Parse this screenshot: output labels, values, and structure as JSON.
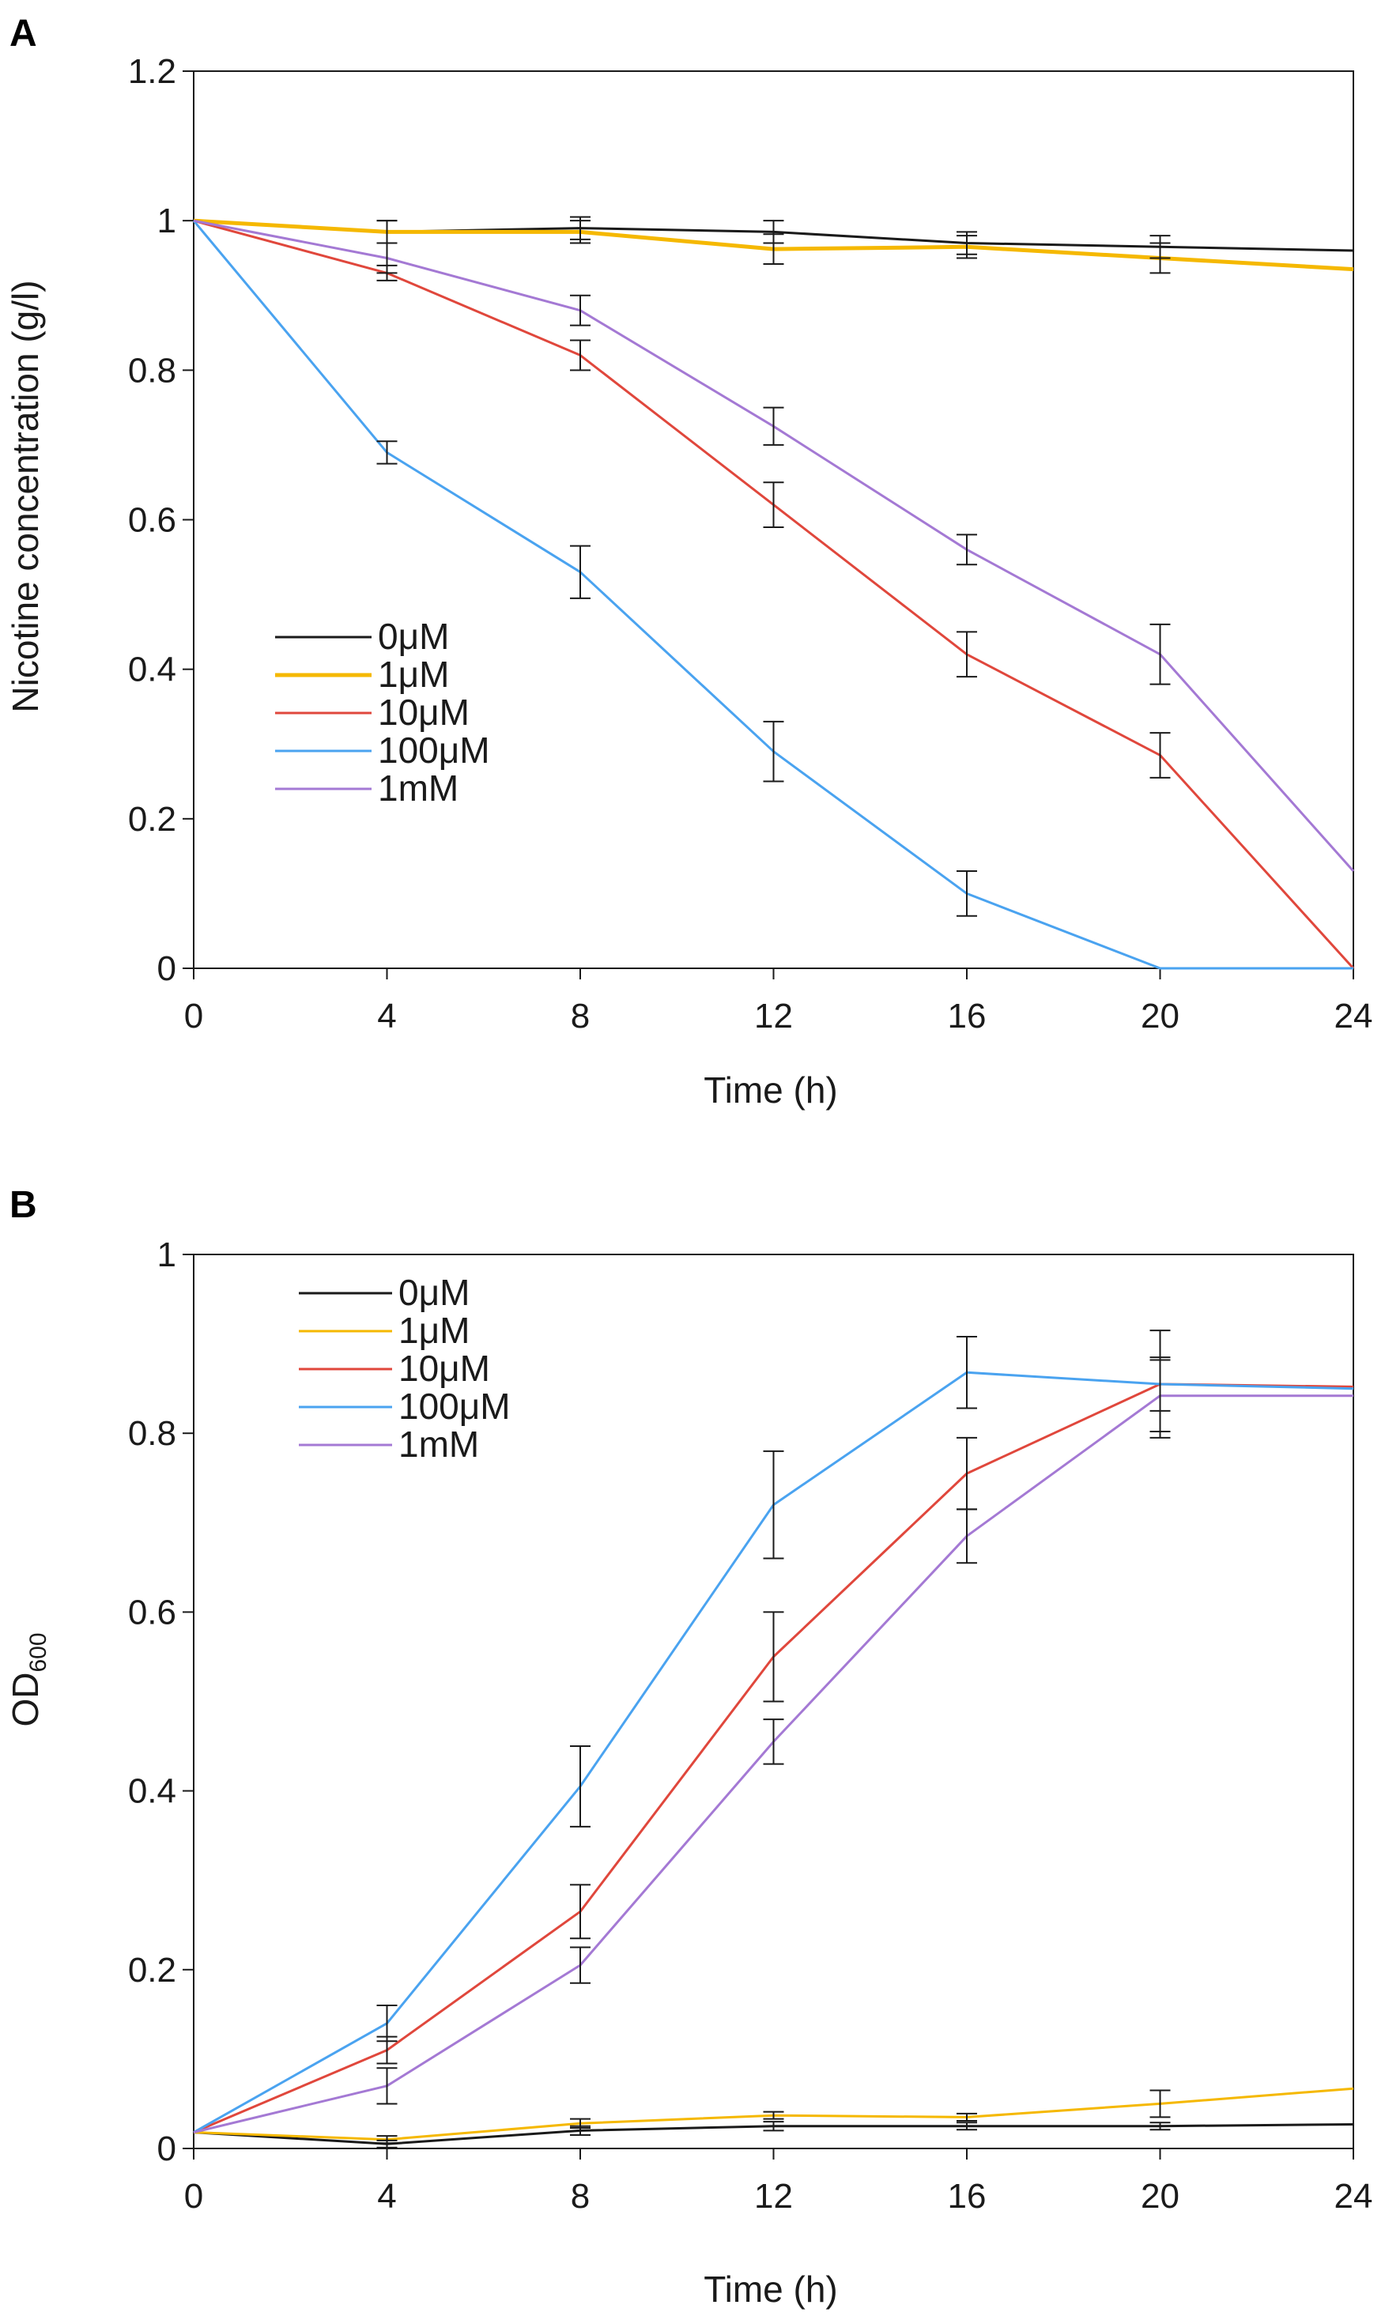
{
  "chart_data": [
    {
      "panel": "A",
      "type": "line",
      "title": "",
      "xlabel": "Time (h)",
      "ylabel": "Nicotine concentration (g/l)",
      "x": [
        0,
        4,
        8,
        12,
        16,
        20,
        24
      ],
      "x_ticks": [
        "0",
        "4",
        "8",
        "12",
        "16",
        "20",
        "24"
      ],
      "xlim": [
        0,
        24
      ],
      "ylim": [
        0,
        1.2
      ],
      "y_ticks": [
        "0",
        "0.2",
        "0.4",
        "0.6",
        "0.8",
        "1",
        "1.2"
      ],
      "legend_position": "left-middle",
      "series": [
        {
          "name": "0μM",
          "color": "#1a1a1a",
          "values": [
            1.0,
            0.985,
            0.99,
            0.985,
            0.97,
            0.965,
            0.96
          ],
          "errors": [
            0,
            0.015,
            0.015,
            0.015,
            0.015,
            0.015,
            0
          ]
        },
        {
          "name": "1μM",
          "color": "#f5b800",
          "values": [
            1.0,
            0.985,
            0.985,
            0.962,
            0.965,
            0.95,
            0.935
          ],
          "errors": [
            0,
            0.015,
            0.015,
            0.02,
            0.015,
            0.02,
            0
          ]
        },
        {
          "name": "10μM",
          "color": "#e0473c",
          "values": [
            1.0,
            0.93,
            0.82,
            0.62,
            0.42,
            0.285,
            0.0
          ],
          "errors": [
            0,
            0.01,
            0.02,
            0.03,
            0.03,
            0.03,
            0
          ]
        },
        {
          "name": "100μM",
          "color": "#4aa3f0",
          "values": [
            1.0,
            0.69,
            0.53,
            0.29,
            0.1,
            0.0,
            0.0
          ],
          "errors": [
            0,
            0.015,
            0.035,
            0.04,
            0.03,
            0,
            0
          ]
        },
        {
          "name": "1mM",
          "color": "#a479d4",
          "values": [
            1.0,
            0.95,
            0.88,
            0.725,
            0.56,
            0.42,
            0.13
          ],
          "errors": [
            0,
            0.02,
            0.02,
            0.025,
            0.02,
            0.04,
            0
          ]
        }
      ]
    },
    {
      "panel": "B",
      "type": "line",
      "title": "",
      "xlabel": "Time (h)",
      "ylabel": "OD",
      "ylabel_subscript": "600",
      "x": [
        0,
        4,
        8,
        12,
        16,
        20,
        24
      ],
      "x_ticks": [
        "0",
        "4",
        "8",
        "12",
        "16",
        "20",
        "24"
      ],
      "xlim": [
        0,
        24
      ],
      "ylim": [
        0,
        1
      ],
      "y_ticks": [
        "0",
        "0.2",
        "0.4",
        "0.6",
        "0.8",
        "1"
      ],
      "legend_position": "top-left",
      "series": [
        {
          "name": "0μM",
          "color": "#1a1a1a",
          "values": [
            0.018,
            0.005,
            0.02,
            0.025,
            0.025,
            0.025,
            0.027
          ],
          "errors": [
            0,
            0.004,
            0.005,
            0.005,
            0.004,
            0.004,
            0
          ]
        },
        {
          "name": "1μM",
          "color": "#f5b800",
          "values": [
            0.018,
            0.01,
            0.028,
            0.037,
            0.035,
            0.05,
            0.067
          ],
          "errors": [
            0,
            0.004,
            0.005,
            0.004,
            0.004,
            0.015,
            0
          ]
        },
        {
          "name": "10μM",
          "color": "#e0473c",
          "values": [
            0.018,
            0.11,
            0.265,
            0.55,
            0.755,
            0.855,
            0.852
          ],
          "errors": [
            0,
            0.015,
            0.03,
            0.05,
            0.04,
            0.03,
            0
          ]
        },
        {
          "name": "100μM",
          "color": "#4aa3f0",
          "values": [
            0.018,
            0.14,
            0.405,
            0.72,
            0.868,
            0.855,
            0.85
          ],
          "errors": [
            0,
            0.02,
            0.045,
            0.06,
            0.04,
            0.06,
            0
          ]
        },
        {
          "name": "1mM",
          "color": "#a479d4",
          "values": [
            0.018,
            0.07,
            0.205,
            0.455,
            0.685,
            0.842,
            0.842
          ],
          "errors": [
            0,
            0.02,
            0.02,
            0.025,
            0.03,
            0.04,
            0
          ]
        }
      ]
    }
  ]
}
